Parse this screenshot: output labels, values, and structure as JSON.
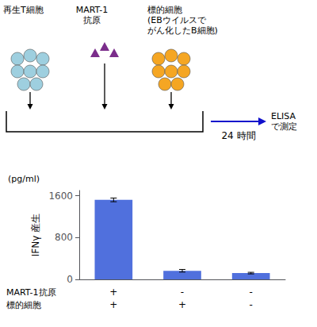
{
  "chart_data": {
    "type": "bar",
    "categories": [
      null,
      null,
      null
    ],
    "values": [
      1520,
      165,
      120
    ],
    "errors": [
      35,
      25,
      15
    ],
    "ylabel": "IFNγ 産生",
    "ylim": [
      0,
      1700
    ],
    "yticks": [
      0,
      800,
      1600
    ],
    "grid": false,
    "category_rows": [
      {
        "label": "MART-1抗原",
        "labels": [
          "+",
          "-",
          "-"
        ]
      },
      {
        "label": "標的細胞",
        "labels": [
          "+",
          "+",
          "-"
        ]
      }
    ],
    "annotations": [
      {
        "text": "再生T細胞",
        "color": "#9ecfdf"
      },
      {
        "text": "MART-1\n抗原",
        "color": "#7b2d8b"
      },
      {
        "text": "標的細胞\n(EBウイルスで\nがん化したB細胞)",
        "color": "#f5a623"
      },
      {
        "text": "24 時間",
        "color": "#1010cc"
      },
      {
        "text": "ELISA\nで測定"
      },
      {
        "text": "(pg/ml)"
      }
    ]
  }
}
